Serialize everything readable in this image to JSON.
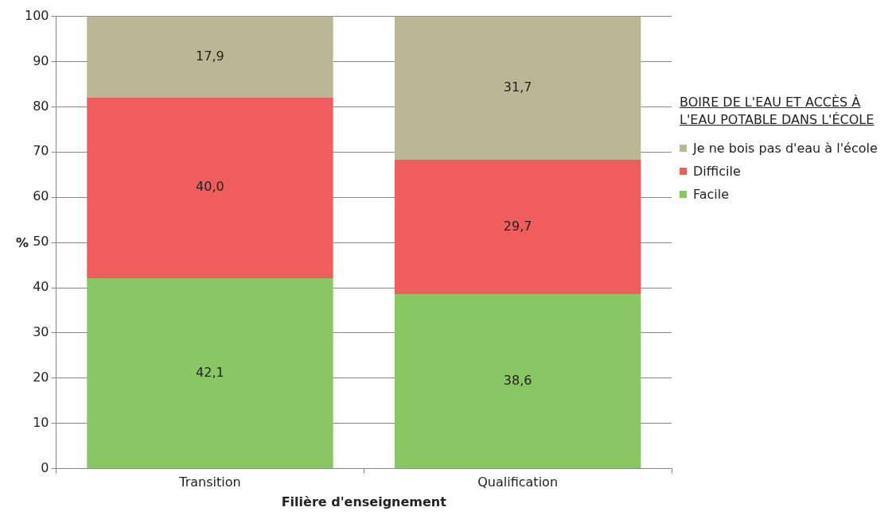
{
  "chart_data": {
    "type": "bar",
    "stacked": true,
    "categories": [
      "Transition",
      "Qualification"
    ],
    "series": [
      {
        "name": "Facile",
        "color": "#88c764",
        "values": [
          42.1,
          38.6
        ],
        "value_labels": [
          "42,1",
          "38,6"
        ]
      },
      {
        "name": "Difficile",
        "color": "#f05d5d",
        "values": [
          40.0,
          29.7
        ],
        "value_labels": [
          "40,0",
          "29,7"
        ]
      },
      {
        "name": "Je ne bois pas d'eau à l'école",
        "color": "#bbb795",
        "values": [
          17.9,
          31.7
        ],
        "value_labels": [
          "17,9",
          "31,7"
        ]
      }
    ],
    "ylim": [
      0,
      100
    ],
    "yticks": [
      0,
      10,
      20,
      30,
      40,
      50,
      60,
      70,
      80,
      90,
      100
    ],
    "grid": "y",
    "xlabel": "Filière d'enseignement",
    "ylabel": "%",
    "legend_title": "BOIRE DE L'EAU ET ACCÈS À L'EAU POTABLE DANS L'ÉCOLE",
    "legend": "right"
  }
}
